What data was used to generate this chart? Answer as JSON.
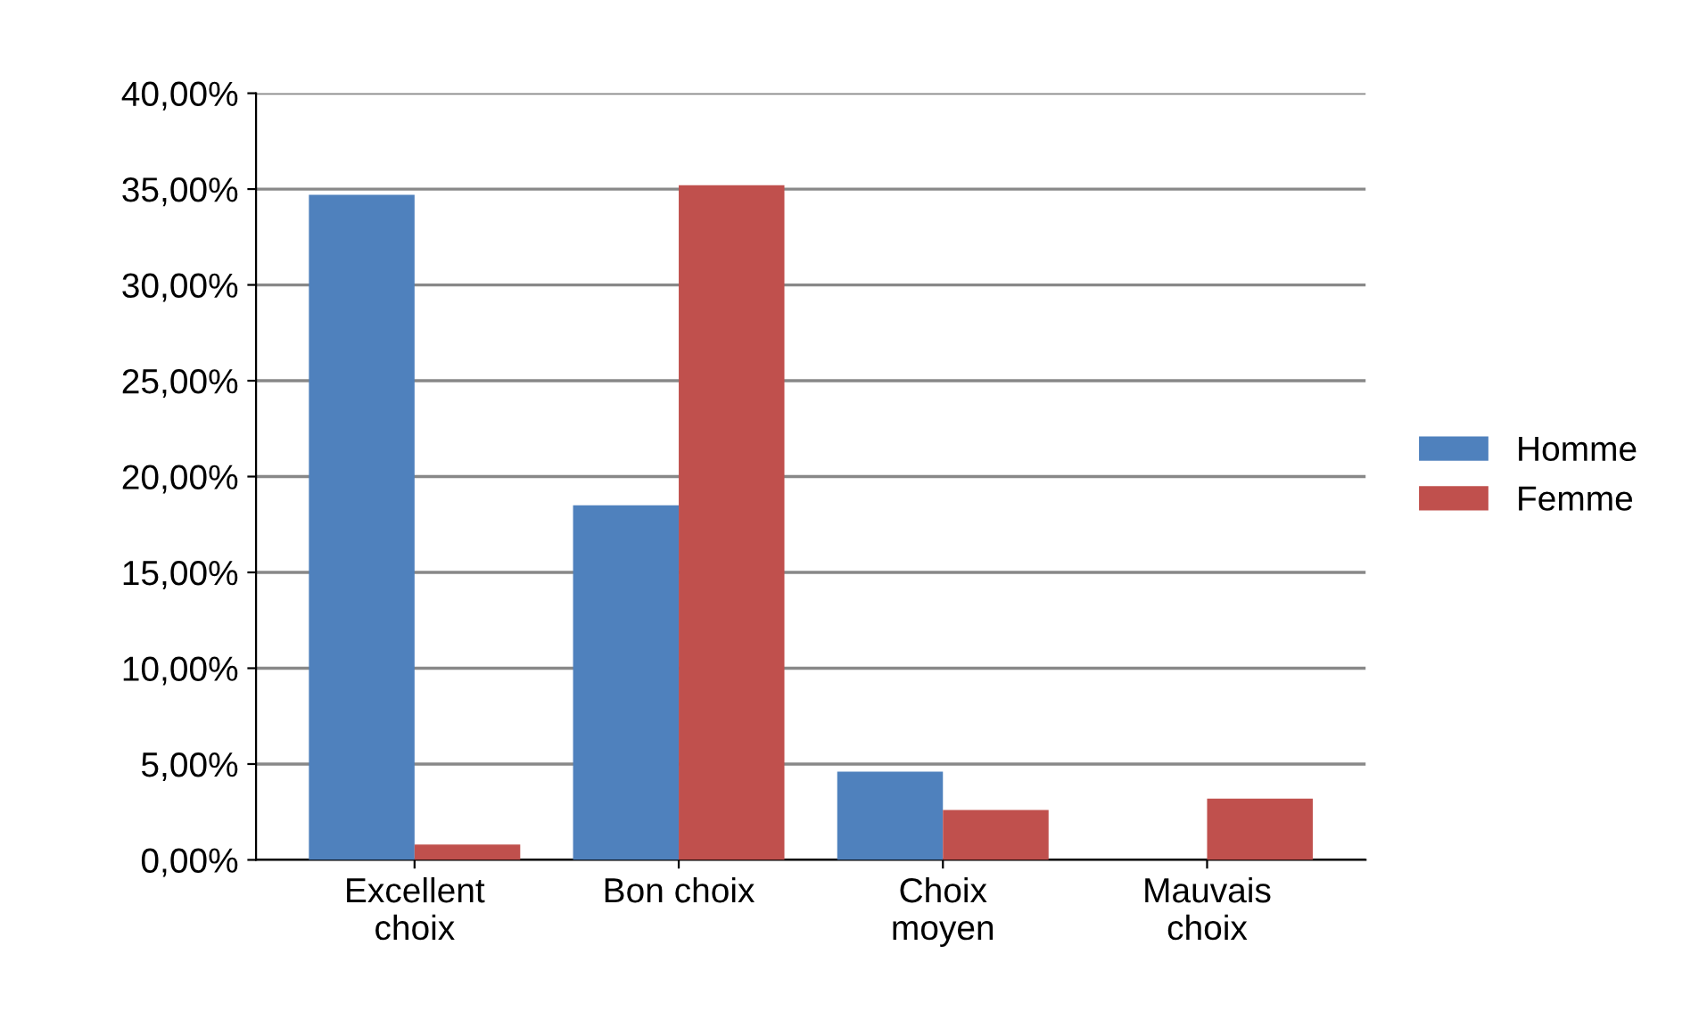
{
  "chart_data": {
    "type": "bar",
    "categories": [
      "Excellent\nchoix",
      "Bon choix",
      "Choix\nmoyen",
      "Mauvais\nchoix"
    ],
    "series": [
      {
        "name": "Homme",
        "color": "#4f81bd",
        "values": [
          34.7,
          18.5,
          4.6,
          0
        ]
      },
      {
        "name": "Femme",
        "color": "#c0504d",
        "values": [
          0.8,
          35.2,
          2.6,
          3.2
        ]
      }
    ],
    "ylim": [
      0,
      40
    ],
    "yticks": [
      {
        "value": 0,
        "label": "0,00%"
      },
      {
        "value": 5,
        "label": "5,00%"
      },
      {
        "value": 10,
        "label": "10,00%"
      },
      {
        "value": 15,
        "label": "15,00%"
      },
      {
        "value": 20,
        "label": "20,00%"
      },
      {
        "value": 25,
        "label": "25,00%"
      },
      {
        "value": 30,
        "label": "30,00%"
      },
      {
        "value": 35,
        "label": "35,00%"
      },
      {
        "value": 40,
        "label": "40,00%"
      }
    ],
    "grid": "y",
    "legend": "right"
  }
}
